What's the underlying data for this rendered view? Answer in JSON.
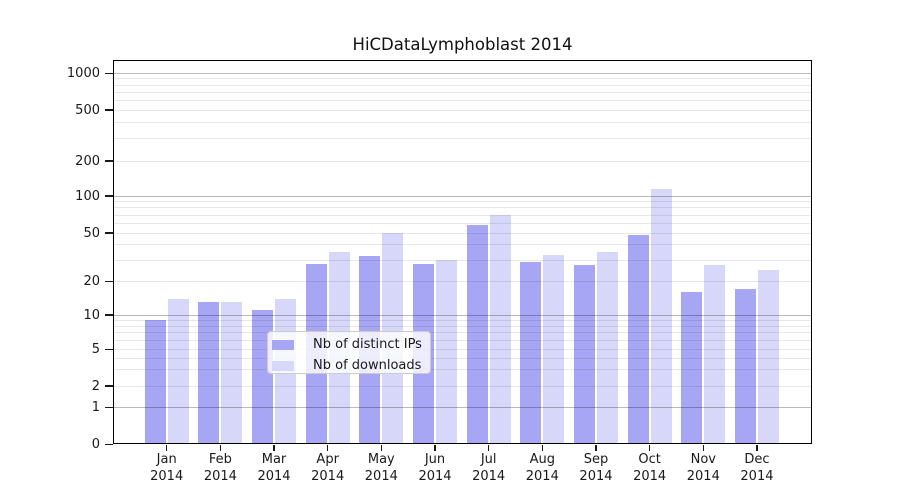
{
  "title": "HiCDataLymphoblast 2014",
  "colors": {
    "ips": "#a6a6f5",
    "downloads": "#d7d7f9",
    "major_grid": "#b5b5b5",
    "minor_grid": "#e8e8e8",
    "axis": "#000000",
    "text": "#1a1a1a"
  },
  "legend": {
    "items": [
      {
        "label": "Nb of distinct IPs",
        "key": "ips"
      },
      {
        "label": "Nb of downloads",
        "key": "downloads"
      }
    ]
  },
  "chart_data": {
    "type": "bar",
    "title": "HiCDataLymphoblast 2014",
    "categories": [
      "Jan",
      "Feb",
      "Mar",
      "Apr",
      "May",
      "Jun",
      "Jul",
      "Aug",
      "Sep",
      "Oct",
      "Nov",
      "Dec"
    ],
    "year_label": "2014",
    "series": [
      {
        "name": "Nb of distinct IPs",
        "color_key": "ips",
        "values": [
          9,
          13,
          11,
          28,
          32,
          28,
          58,
          29,
          27,
          48,
          16,
          17
        ]
      },
      {
        "name": "Nb of downloads",
        "color_key": "downloads",
        "values": [
          14,
          13,
          14,
          35,
          50,
          30,
          70,
          33,
          35,
          115,
          27,
          25
        ]
      }
    ],
    "yscale": "symlog",
    "yticks": [
      0,
      1,
      2,
      5,
      10,
      20,
      50,
      100,
      200,
      500,
      1000
    ],
    "ylim": [
      0,
      1300
    ],
    "grid": true,
    "legend_position": "lower center"
  }
}
